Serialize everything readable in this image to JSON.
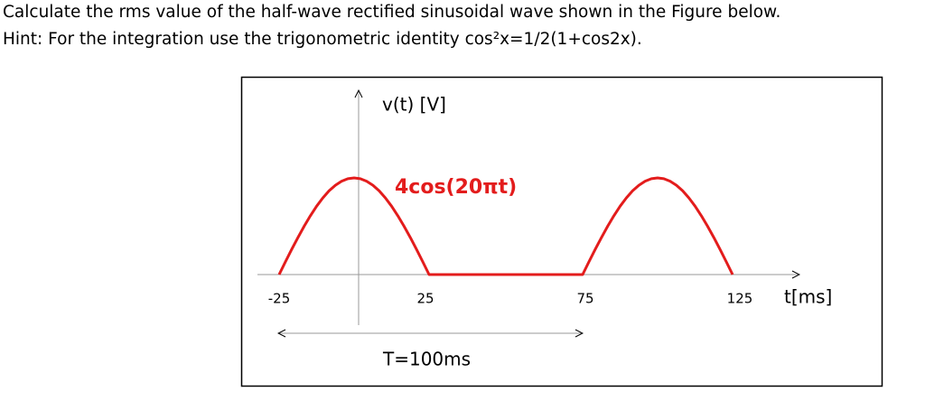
{
  "question": {
    "line1": "Calculate the rms value of the half-wave rectified sinusoidal wave shown in the Figure below.",
    "line2": "Hint: For the integration use the trigonometric identity cos²x=1/2(1+cos2x)."
  },
  "figure": {
    "y_label": "v(t) [V]",
    "function_label": "4cos(20πt)",
    "x_ticks": [
      "-25",
      "25",
      "75",
      "125"
    ],
    "x_label": "t[ms]",
    "period_label": "T=100ms"
  }
}
